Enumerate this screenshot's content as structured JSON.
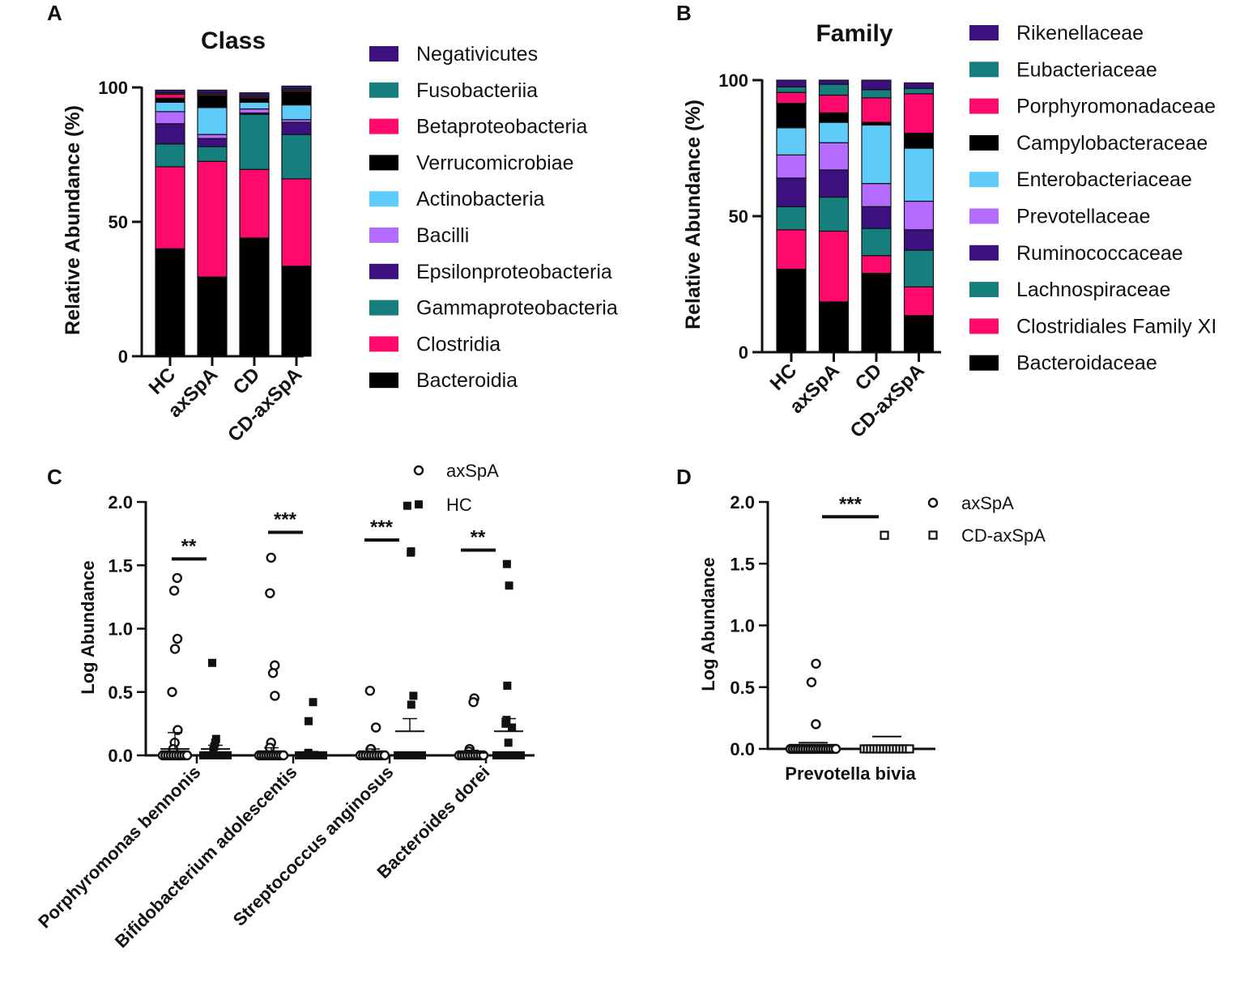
{
  "panels": {
    "A": "A",
    "B": "B",
    "C": "C",
    "D": "D"
  },
  "colors": {
    "black": "#000000",
    "magenta": "#ff0a6c",
    "teal": "#167f7d",
    "indigo": "#3d1080",
    "lilac": "#b36cff",
    "sky": "#5ecbf8",
    "violet": "#3d1080"
  },
  "chart_data": [
    {
      "id": "A",
      "type": "bar",
      "stacked": true,
      "title": "Class",
      "ylabel": "Relative Abundance (%)",
      "ylim": [
        0,
        100
      ],
      "yticks": [
        "0",
        "50",
        "100"
      ],
      "categories": [
        "HC",
        "axSpA",
        "CD",
        "CD-axSpA"
      ],
      "series": [
        {
          "name": "Bacteroidia",
          "color": "#000000",
          "values": [
            40,
            29.5,
            44,
            33.5
          ]
        },
        {
          "name": "Clostridia",
          "color": "#ff0a6c",
          "values": [
            30.5,
            43,
            25.5,
            32.5
          ]
        },
        {
          "name": "Gammaproteobacteria",
          "color": "#167f7d",
          "values": [
            8.5,
            5.5,
            20.5,
            16.5
          ]
        },
        {
          "name": "Epsilonproteobacteria",
          "color": "#3d1080",
          "values": [
            7.5,
            3,
            0.5,
            4.5
          ]
        },
        {
          "name": "Bacilli",
          "color": "#b36cff",
          "values": [
            4.5,
            1.5,
            1.5,
            1
          ]
        },
        {
          "name": "Actinobacteria",
          "color": "#5ecbf8",
          "values": [
            3.5,
            10,
            2.5,
            5.5
          ]
        },
        {
          "name": "Verrucomicrobiae",
          "color": "#000000",
          "values": [
            1.5,
            4.5,
            1.5,
            5
          ]
        },
        {
          "name": "Betaproteobacteria",
          "color": "#ff0a6c",
          "values": [
            1.5,
            0.5,
            0.5,
            0.5
          ]
        },
        {
          "name": "Fusobacteriia",
          "color": "#167f7d",
          "values": [
            0.5,
            0.5,
            0.5,
            0.5
          ]
        },
        {
          "name": "Negativicutes",
          "color": "#3d1080",
          "values": [
            1,
            1,
            1,
            1
          ]
        }
      ]
    },
    {
      "id": "B",
      "type": "bar",
      "stacked": true,
      "title": "Family",
      "ylabel": "Relative Abundance (%)",
      "ylim": [
        0,
        100
      ],
      "yticks": [
        "0",
        "50",
        "100"
      ],
      "categories": [
        "HC",
        "axSpA",
        "CD",
        "CD-axSpA"
      ],
      "series": [
        {
          "name": "Bacteroidaceae",
          "color": "#000000",
          "values": [
            30.5,
            18.5,
            29,
            13.5
          ]
        },
        {
          "name": "Clostridiales Family XI",
          "color": "#ff0a6c",
          "values": [
            14.5,
            26,
            6.5,
            10.5
          ]
        },
        {
          "name": "Lachnospiraceae",
          "color": "#167f7d",
          "values": [
            8.5,
            12.5,
            10,
            13.5
          ]
        },
        {
          "name": "Ruminococcaceae",
          "color": "#3d1080",
          "values": [
            10.5,
            10,
            8,
            7.5
          ]
        },
        {
          "name": "Prevotellaceae",
          "color": "#b36cff",
          "values": [
            8.5,
            10,
            8.5,
            10.5
          ]
        },
        {
          "name": "Enterobacteriaceae",
          "color": "#5ecbf8",
          "values": [
            10,
            7.5,
            21.5,
            19.5
          ]
        },
        {
          "name": "Campylobacteraceae",
          "color": "#000000",
          "values": [
            9,
            3.5,
            1,
            5.5
          ]
        },
        {
          "name": "Porphyromonadaceae",
          "color": "#ff0a6c",
          "values": [
            4,
            6.5,
            9,
            14.5
          ]
        },
        {
          "name": "Eubacteriaceae",
          "color": "#167f7d",
          "values": [
            2,
            4,
            3,
            2
          ]
        },
        {
          "name": "Rikenellaceae",
          "color": "#3d1080",
          "values": [
            2.5,
            1.5,
            3.5,
            2
          ]
        }
      ]
    },
    {
      "id": "C",
      "type": "scatter",
      "ylabel": "Log Abundance",
      "ylim": [
        0,
        2.0
      ],
      "yticks": [
        "0.0",
        "0.5",
        "1.0",
        "1.5",
        "2.0"
      ],
      "categories": [
        "Porphyromonas bennonis",
        "Bifidobacterium adolescentis",
        "Streptococcus anginosus",
        "Bacteroides dorei"
      ],
      "legend": [
        "axSpA",
        "HC"
      ],
      "significance": [
        "**",
        "***",
        "***",
        "**"
      ],
      "groups": [
        {
          "category": 0,
          "series": "axSpA",
          "marker": "open-circle",
          "values": [
            1.4,
            1.3,
            0.92,
            0.84,
            0.5,
            0.2,
            0.1,
            0.05,
            0,
            0,
            0,
            0,
            0,
            0,
            0,
            0,
            0,
            0
          ],
          "mean": 0.05,
          "err_hi": 0.18
        },
        {
          "category": 0,
          "series": "HC",
          "marker": "filled-square",
          "values": [
            0.73,
            0.13,
            0.1,
            0.07,
            0.04,
            0,
            0,
            0,
            0,
            0,
            0,
            0,
            0,
            0
          ],
          "mean": 0.05,
          "err_hi": 0.08
        },
        {
          "category": 1,
          "series": "axSpA",
          "marker": "open-circle",
          "values": [
            1.56,
            1.28,
            0.71,
            0.65,
            0.47,
            0.1,
            0.06,
            0,
            0,
            0,
            0,
            0,
            0,
            0,
            0,
            0,
            0,
            0
          ],
          "mean": 0.03,
          "err_hi": 0.06
        },
        {
          "category": 1,
          "series": "HC",
          "marker": "filled-square",
          "values": [
            0.42,
            0.27,
            0.02,
            0,
            0,
            0,
            0,
            0,
            0,
            0,
            0,
            0
          ],
          "mean": 0.01,
          "err_hi": 0.03
        },
        {
          "category": 2,
          "series": "axSpA",
          "marker": "open-circle",
          "values": [
            0.51,
            0.22,
            0.05,
            0.05,
            0,
            0,
            0,
            0,
            0,
            0,
            0,
            0,
            0,
            0
          ],
          "mean": 0.03,
          "err_hi": 0.05
        },
        {
          "category": 2,
          "series": "HC",
          "marker": "filled-square",
          "values": [
            1.97,
            1.61,
            1.6,
            0.47,
            0.4,
            0,
            0,
            0,
            0,
            0,
            0,
            0,
            0
          ],
          "mean": 0.19,
          "err_hi": 0.29
        },
        {
          "category": 3,
          "series": "axSpA",
          "marker": "open-circle",
          "values": [
            0.45,
            0.42,
            0.05,
            0.03,
            0,
            0,
            0,
            0,
            0,
            0,
            0,
            0,
            0,
            0
          ],
          "mean": 0.02,
          "err_hi": 0.04
        },
        {
          "category": 3,
          "series": "HC",
          "marker": "filled-square",
          "values": [
            1.51,
            1.34,
            0.55,
            0.28,
            0.25,
            0.22,
            0.1,
            0,
            0,
            0,
            0,
            0,
            0,
            0
          ],
          "mean": 0.19,
          "err_hi": 0.29
        }
      ]
    },
    {
      "id": "D",
      "type": "scatter",
      "ylabel": "Log Abundance",
      "ylim": [
        0,
        2.0
      ],
      "yticks": [
        "0.0",
        "0.5",
        "1.0",
        "1.5",
        "2.0"
      ],
      "categories": [
        "Prevotella bivia"
      ],
      "legend": [
        "axSpA",
        "CD-axSpA"
      ],
      "significance": [
        "***"
      ],
      "groups": [
        {
          "category": 0,
          "series": "axSpA",
          "marker": "open-circle",
          "values": [
            0.69,
            0.54,
            0.2,
            0,
            0,
            0,
            0,
            0,
            0,
            0,
            0,
            0,
            0,
            0,
            0,
            0,
            0,
            0,
            0,
            0,
            0,
            0
          ],
          "mean": 0.05
        },
        {
          "category": 0,
          "series": "CD-axSpA",
          "marker": "open-square",
          "values": [
            1.73,
            0,
            0,
            0,
            0,
            0,
            0,
            0,
            0,
            0,
            0,
            0,
            0,
            0,
            0,
            0
          ],
          "mean": 0.1
        }
      ]
    }
  ]
}
